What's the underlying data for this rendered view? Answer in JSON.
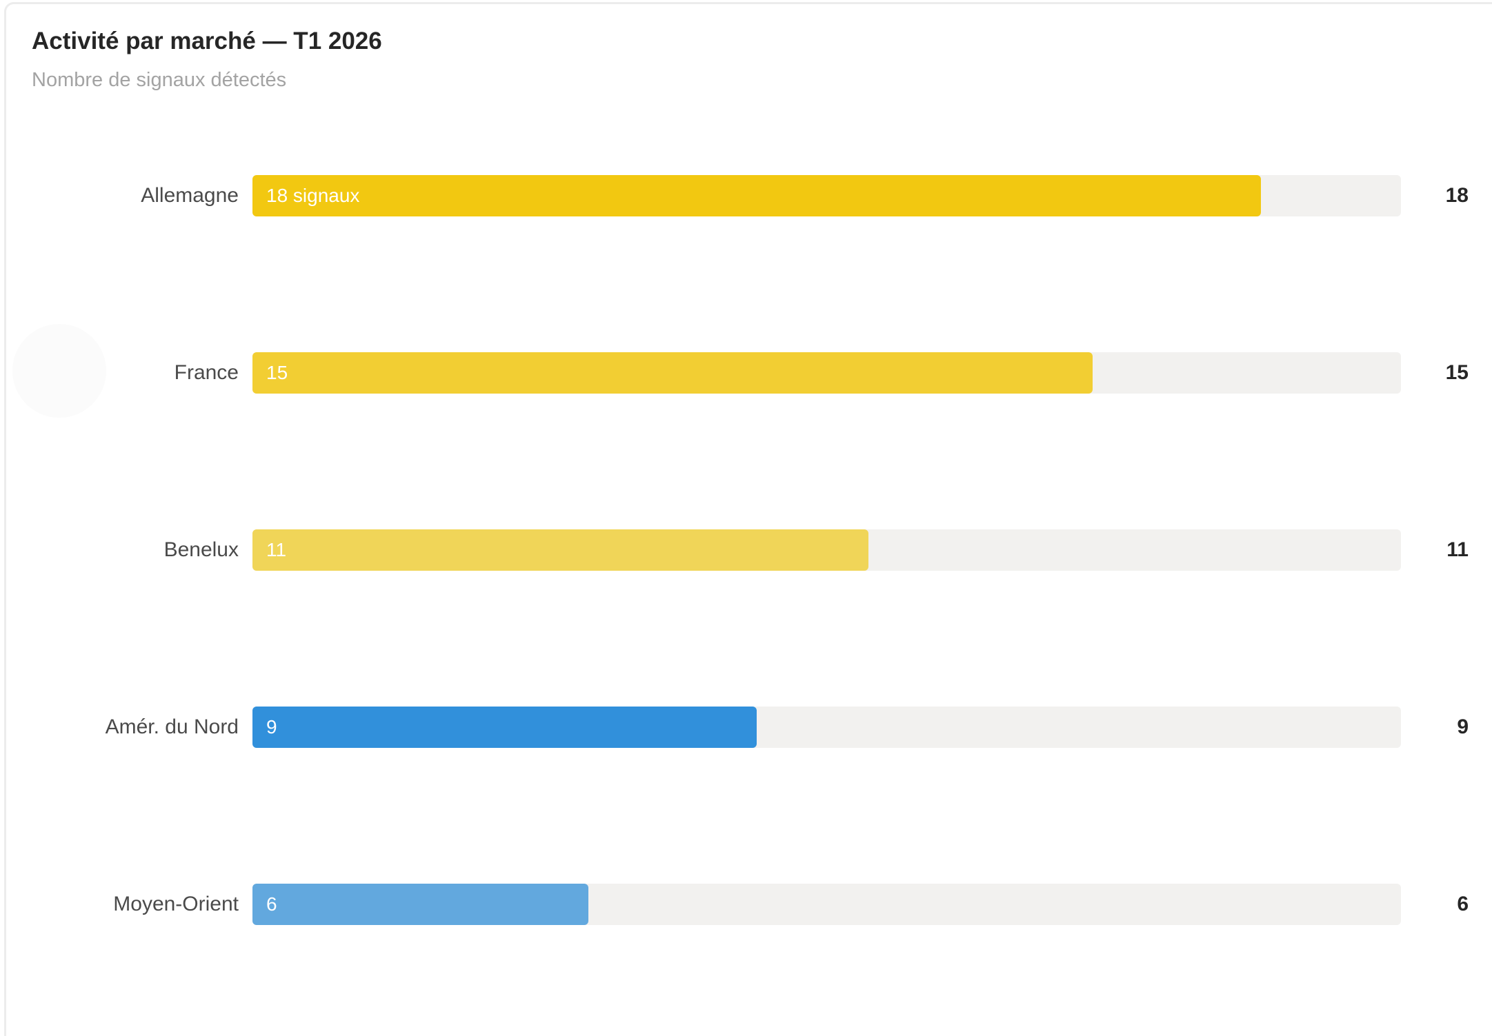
{
  "card": {
    "title": "Activité par marché — T1 2026",
    "subtitle": "Nombre de signaux détectés"
  },
  "chart_data": {
    "type": "bar",
    "orientation": "horizontal",
    "title": "Activité par marché — T1 2026",
    "subtitle": "Nombre de signaux détectés",
    "xlim": [
      0,
      20.5
    ],
    "grid": false,
    "categories": [
      "Allemagne",
      "France",
      "Benelux",
      "Amér. du Nord",
      "Moyen-Orient"
    ],
    "values": [
      18,
      15,
      11,
      9,
      6
    ],
    "bar_labels": [
      "18 signaux",
      "15",
      "11",
      "9",
      "6"
    ],
    "value_labels": [
      "18",
      "15",
      "11",
      "9",
      "6"
    ],
    "colors": [
      "#f2c811",
      "#f2ce33",
      "#f0d558",
      "#3190db",
      "#62a8de"
    ],
    "track_color": "#f2f1ef"
  }
}
